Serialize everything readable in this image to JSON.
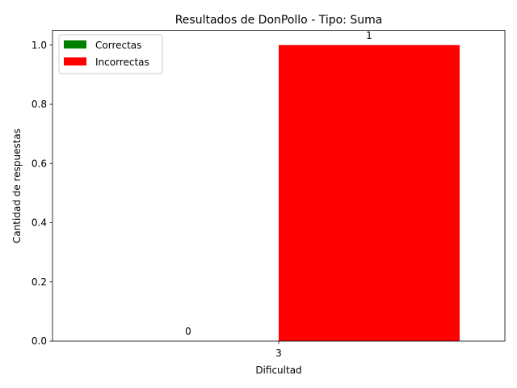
{
  "chart_data": {
    "type": "bar",
    "title": "Resultados de DonPollo - Tipo: Suma",
    "xlabel": "Dificultad",
    "ylabel": "Cantidad de respuestas",
    "categories": [
      "3"
    ],
    "series": [
      {
        "name": "Correctas",
        "values": [
          0
        ],
        "color": "#008000",
        "labels": [
          "0"
        ]
      },
      {
        "name": "Incorrectas",
        "values": [
          1
        ],
        "color": "#ff0000",
        "labels": [
          "1"
        ]
      }
    ],
    "ylim": [
      0,
      1.05
    ],
    "yticks": [
      "0.0",
      "0.2",
      "0.4",
      "0.6",
      "0.8",
      "1.0"
    ],
    "grid": false,
    "legend_position": "top-left"
  }
}
